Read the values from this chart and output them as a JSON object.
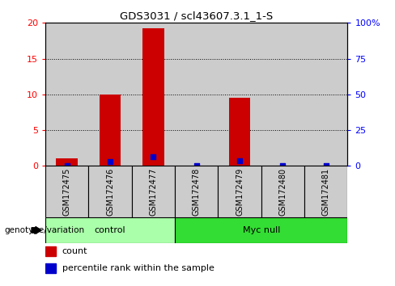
{
  "title": "GDS3031 / scl43607.3.1_1-S",
  "samples": [
    "GSM172475",
    "GSM172476",
    "GSM172477",
    "GSM172478",
    "GSM172479",
    "GSM172480",
    "GSM172481"
  ],
  "counts": [
    1,
    10,
    19.3,
    0,
    9.5,
    0,
    0
  ],
  "percentile_ranks": [
    0.3,
    3.0,
    6.5,
    0,
    3.3,
    0,
    0
  ],
  "groups": [
    {
      "label": "control",
      "start": 0,
      "end": 3,
      "color": "#AAFFAA"
    },
    {
      "label": "Myc null",
      "start": 3,
      "end": 7,
      "color": "#33DD33"
    }
  ],
  "ylim_left": [
    0,
    20
  ],
  "ylim_right": [
    0,
    100
  ],
  "yticks_left": [
    0,
    5,
    10,
    15,
    20
  ],
  "yticks_right": [
    0,
    25,
    50,
    75,
    100
  ],
  "ytick_labels_right": [
    "0",
    "25",
    "50",
    "75",
    "100%"
  ],
  "bar_color": "#CC0000",
  "percentile_color": "#0000CC",
  "bar_width": 0.5,
  "group_label_prefix": "genotype/variation",
  "legend_count_label": "count",
  "legend_percentile_label": "percentile rank within the sample",
  "col_bg_color": "#CCCCCC",
  "col_bg_alt": "#DDDDDD"
}
